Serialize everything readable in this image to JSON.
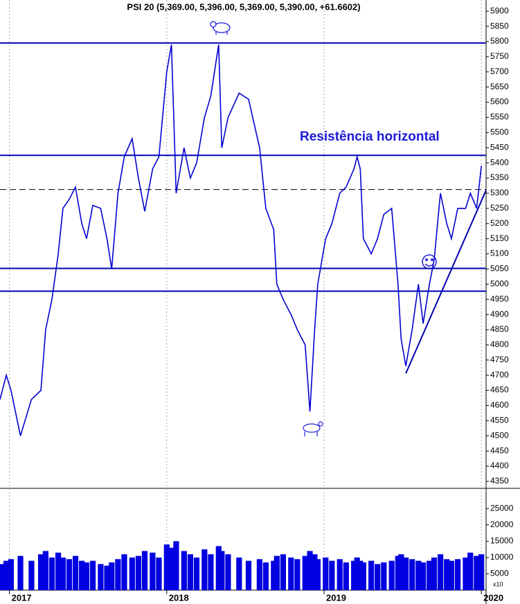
{
  "chart_data": [
    {
      "type": "line",
      "title": "PSI 20 (5,369.00, 5,396.00, 5,369.00, 5,390.00, +61.6602)",
      "annotation": "Resistência horizontal",
      "x": [
        2016.94,
        2016.98,
        2017.01,
        2017.07,
        2017.14,
        2017.2,
        2017.23,
        2017.27,
        2017.31,
        2017.34,
        2017.38,
        2017.42,
        2017.46,
        2017.49,
        2017.53,
        2017.58,
        2017.62,
        2017.65,
        2017.69,
        2017.73,
        2017.78,
        2017.82,
        2017.86,
        2017.91,
        2017.95,
        2018.0,
        2018.03,
        2018.06,
        2018.11,
        2018.15,
        2018.19,
        2018.24,
        2018.28,
        2018.33,
        2018.35,
        2018.39,
        2018.46,
        2018.52,
        2018.59,
        2018.63,
        2018.68,
        2018.7,
        2018.74,
        2018.79,
        2018.83,
        2018.88,
        2018.91,
        2018.94,
        2018.96,
        2019.01,
        2019.05,
        2019.1,
        2019.14,
        2019.19,
        2019.21,
        2019.23,
        2019.25,
        2019.3,
        2019.34,
        2019.38,
        2019.43,
        2019.47,
        2019.49,
        2019.52,
        2019.56,
        2019.6,
        2019.63,
        2019.67,
        2019.7,
        2019.74,
        2019.78,
        2019.81,
        2019.85,
        2019.9,
        2019.93,
        2019.97,
        2020.0
      ],
      "series": [
        {
          "name": "PSI 20",
          "color": "#0000d0",
          "values": [
            4620,
            4700,
            4650,
            4500,
            4620,
            4650,
            4850,
            4950,
            5100,
            5250,
            5280,
            5320,
            5200,
            5150,
            5260,
            5250,
            5150,
            5050,
            5300,
            5420,
            5480,
            5350,
            5240,
            5380,
            5420,
            5700,
            5790,
            5300,
            5450,
            5350,
            5400,
            5550,
            5620,
            5790,
            5450,
            5550,
            5630,
            5610,
            5450,
            5250,
            5180,
            5000,
            4950,
            4900,
            4850,
            4800,
            4580,
            4850,
            5000,
            5150,
            5200,
            5300,
            5320,
            5380,
            5420,
            5380,
            5150,
            5100,
            5150,
            5230,
            5250,
            5000,
            4820,
            4730,
            4850,
            5000,
            4870,
            5000,
            5080,
            5300,
            5200,
            5150,
            5250,
            5250,
            5300,
            5250,
            5390
          ]
        }
      ],
      "hlines": [
        5795,
        5425,
        5052,
        4977
      ],
      "dashed_hline": 5312,
      "trendline": {
        "x": [
          2019.52,
          2020.03
        ],
        "y": [
          4706,
          5310
        ]
      },
      "xlim": [
        2016.94,
        2020.03
      ],
      "xticks": [
        2017,
        2018,
        2019,
        2020
      ],
      "ylim": [
        4327,
        5937
      ],
      "yticks": [
        4350,
        4400,
        4450,
        4500,
        4550,
        4600,
        4650,
        4700,
        4750,
        4800,
        4850,
        4900,
        4950,
        5000,
        5050,
        5100,
        5150,
        5200,
        5250,
        5300,
        5350,
        5400,
        5450,
        5500,
        5550,
        5600,
        5650,
        5700,
        5750,
        5800,
        5850,
        5900
      ],
      "grid": "x"
    },
    {
      "type": "bar",
      "unit_label": "x10",
      "color": "#0000e0",
      "x": [
        2016.94,
        2016.98,
        2017.01,
        2017.07,
        2017.14,
        2017.2,
        2017.23,
        2017.27,
        2017.31,
        2017.34,
        2017.38,
        2017.42,
        2017.46,
        2017.49,
        2017.53,
        2017.58,
        2017.62,
        2017.65,
        2017.69,
        2017.73,
        2017.78,
        2017.82,
        2017.86,
        2017.91,
        2017.95,
        2018.0,
        2018.03,
        2018.06,
        2018.11,
        2018.15,
        2018.19,
        2018.24,
        2018.28,
        2018.33,
        2018.35,
        2018.39,
        2018.46,
        2018.52,
        2018.59,
        2018.63,
        2018.68,
        2018.7,
        2018.74,
        2018.79,
        2018.83,
        2018.88,
        2018.91,
        2018.94,
        2018.96,
        2019.01,
        2019.05,
        2019.1,
        2019.14,
        2019.19,
        2019.21,
        2019.23,
        2019.25,
        2019.3,
        2019.34,
        2019.38,
        2019.43,
        2019.47,
        2019.49,
        2019.52,
        2019.56,
        2019.6,
        2019.63,
        2019.67,
        2019.7,
        2019.74,
        2019.78,
        2019.81,
        2019.85,
        2019.9,
        2019.93,
        2019.97,
        2020.0
      ],
      "values": [
        8000,
        9000,
        9500,
        10500,
        9000,
        11000,
        12000,
        10000,
        11500,
        10000,
        9500,
        10500,
        9000,
        8500,
        9000,
        8000,
        7500,
        8500,
        9500,
        11000,
        10000,
        10500,
        12000,
        11500,
        10000,
        14000,
        13000,
        15000,
        12000,
        11000,
        10000,
        12500,
        11000,
        13500,
        12000,
        11000,
        10000,
        9000,
        9500,
        8500,
        9000,
        10500,
        11000,
        10000,
        9500,
        10500,
        12000,
        11000,
        9500,
        10000,
        9000,
        9500,
        8500,
        9000,
        10000,
        9000,
        8500,
        9000,
        8000,
        8500,
        9000,
        10500,
        11000,
        10000,
        9500,
        9000,
        8500,
        9000,
        10000,
        11000,
        9500,
        9000,
        9500,
        10000,
        11500,
        10500,
        11000
      ],
      "xlim": [
        2016.94,
        2020.03
      ],
      "ylim": [
        0,
        31000
      ],
      "yticks": [
        5000,
        10000,
        15000,
        20000,
        25000
      ]
    }
  ]
}
